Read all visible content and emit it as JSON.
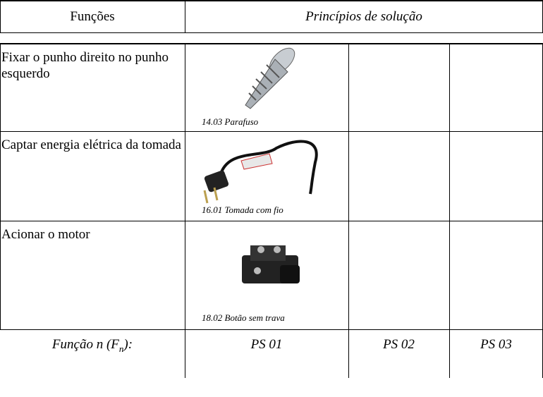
{
  "header": {
    "functions": "Funções",
    "principles": "Princípios de solução"
  },
  "rows": [
    {
      "function": "Fixar o punho direito no punho esquerdo",
      "solution_caption": "14.03 Parafuso"
    },
    {
      "function": "Captar energia elétrica da tomada",
      "solution_caption": "16.01 Tomada com fio"
    },
    {
      "function": "Acionar o motor",
      "solution_caption": "18.02 Botão sem trava"
    }
  ],
  "footer": {
    "function_label": {
      "text": "Função n (F",
      "subscript": "n",
      "suffix": "):"
    },
    "columns": [
      "PS 01",
      "PS 02",
      "PS 03"
    ]
  }
}
